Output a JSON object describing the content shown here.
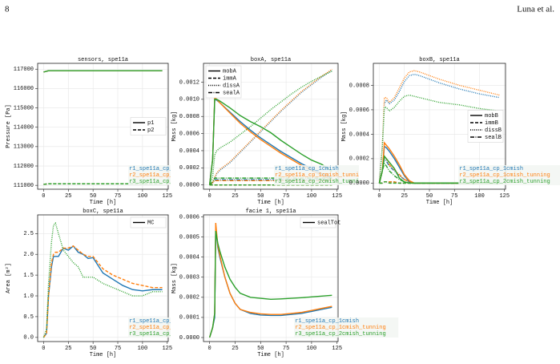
{
  "header": {
    "page": "8",
    "author": "Luna et al."
  },
  "chart_data": [
    {
      "type": "line",
      "title": "sensors, spe11a",
      "xlabel": "Time [h]",
      "ylabel": "Pressure [Pa]",
      "xlim": [
        -6,
        126
      ],
      "xticks": [
        0,
        25,
        50,
        75,
        100,
        125
      ],
      "ylim": [
        110800,
        117300
      ],
      "yticks": [
        111000,
        112000,
        113000,
        114000,
        115000,
        116000,
        117000
      ],
      "grid": true,
      "legend": "center right",
      "styles": [
        {
          "name": "p1",
          "dash": "solid"
        },
        {
          "name": "p2",
          "dash": "dashed"
        }
      ],
      "x": [
        0,
        5,
        120
      ],
      "runs": [
        {
          "name": "r1_spe11a_cp_1cmish",
          "color": "#1f77b4",
          "values": [
            [
              116850,
              116920,
              116920
            ],
            [
              111050,
              111080,
              111080
            ]
          ]
        },
        {
          "name": "r2_spe11a_cp_1cmish_tunning",
          "color": "#ff7f0e",
          "values": [
            [
              116850,
              116920,
              116920
            ],
            [
              111050,
              111080,
              111080
            ]
          ]
        },
        {
          "name": "r3_spe11a_cp_2cmish_tunning",
          "color": "#2ca02c",
          "values": [
            [
              116850,
              116920,
              116920
            ],
            [
              111050,
              111080,
              111080
            ]
          ]
        }
      ]
    },
    {
      "type": "line",
      "title": "boxA, spe11a",
      "xlabel": "Time [h]",
      "ylabel": "Mass [kg]",
      "xlim": [
        -6,
        126
      ],
      "xticks": [
        0,
        25,
        50,
        75,
        100,
        125
      ],
      "ylim": [
        -5e-05,
        0.00142
      ],
      "yticks": [
        {
          "value": 0,
          "label": "0.0000"
        },
        {
          "value": 0.0002,
          "label": "0.0002"
        },
        {
          "value": 0.0004,
          "label": "0.0004"
        },
        {
          "value": 0.0006,
          "label": "0.0006"
        },
        {
          "value": 0.0008,
          "label": "0.0008"
        },
        {
          "value": 0.001,
          "label": "0.0010"
        },
        {
          "value": 0.0012,
          "label": "0.0012"
        }
      ],
      "grid": true,
      "legend": "upper left",
      "styles": [
        {
          "name": "mobA",
          "dash": "solid"
        },
        {
          "name": "immA",
          "dash": "dashed"
        },
        {
          "name": "dissA",
          "dash": "dotted"
        },
        {
          "name": "sealA",
          "dash": "dashdot"
        }
      ],
      "x": [
        0,
        3,
        5,
        7,
        10,
        20,
        30,
        40,
        50,
        60,
        70,
        80,
        90,
        100,
        110,
        120
      ],
      "runs": [
        {
          "name": "r1_spe11a_cp_1cmish",
          "color": "#1f77b4",
          "values": [
            [
              0,
              0.0003,
              0.001,
              0.00099,
              0.00096,
              0.00085,
              0.00074,
              0.00064,
              0.00055,
              0.00047,
              0.00039,
              0.00032,
              0.00025,
              0.00019,
              0.00013,
              8e-05
            ],
            [
              0,
              0,
              0,
              0,
              0,
              0,
              0,
              0,
              0,
              0,
              0,
              0,
              0,
              0,
              0,
              0
            ],
            [
              0,
              2e-05,
              8e-05,
              0.00013,
              0.00017,
              0.00026,
              0.00038,
              0.0005,
              0.00062,
              0.00074,
              0.00086,
              0.00097,
              0.00108,
              0.00117,
              0.00126,
              0.00134
            ],
            [
              0,
              3e-05,
              6e-05,
              6e-05,
              6e-05,
              6e-05,
              6e-05,
              6e-05,
              6e-05,
              6e-05,
              6e-05,
              6e-05,
              6e-05,
              6e-05,
              6e-05,
              6e-05
            ]
          ]
        },
        {
          "name": "r2_spe11a_cp_1cmish_tunning",
          "color": "#ff7f0e",
          "values": [
            [
              0,
              0.0003,
              0.00102,
              0.001,
              0.00096,
              0.00084,
              0.00072,
              0.00062,
              0.00053,
              0.00045,
              0.00037,
              0.0003,
              0.00023,
              0.00017,
              0.00011,
              6e-05
            ],
            [
              0,
              0,
              0,
              0,
              0,
              0,
              0,
              0,
              0,
              0,
              0,
              0,
              0,
              0,
              0,
              0
            ],
            [
              0,
              3e-05,
              9e-05,
              0.00014,
              0.00018,
              0.00027,
              0.00039,
              0.00051,
              0.00063,
              0.00075,
              0.00087,
              0.00098,
              0.00109,
              0.00118,
              0.00127,
              0.00135
            ],
            [
              0,
              3e-05,
              5e-05,
              5e-05,
              5e-05,
              5e-05,
              5e-05,
              5e-05,
              5e-05,
              5e-05,
              5e-05,
              5e-05,
              5e-05,
              5e-05,
              5e-05,
              5e-05
            ]
          ]
        },
        {
          "name": "r3_spe11a_cp_2cmish_tunning",
          "color": "#2ca02c",
          "values": [
            [
              0,
              0.0003,
              0.001,
              0.001,
              0.00098,
              0.0009,
              0.00081,
              0.00074,
              0.00068,
              0.00061,
              0.00052,
              0.00044,
              0.00036,
              0.00029,
              0.00024,
              0.00016
            ],
            [
              0,
              0,
              0,
              0,
              0,
              0,
              0,
              0,
              0,
              0,
              0,
              0,
              0,
              0,
              0,
              0
            ],
            [
              0,
              0.0001,
              0.00035,
              0.0004,
              0.00043,
              0.0005,
              0.00059,
              0.00068,
              0.00078,
              0.00088,
              0.00097,
              0.00106,
              0.00114,
              0.00121,
              0.00127,
              0.00133
            ],
            [
              0,
              4e-05,
              8e-05,
              8e-05,
              8e-05,
              8e-05,
              8e-05,
              8e-05,
              8e-05,
              8e-05,
              8e-05,
              8e-05,
              8e-05,
              8e-05,
              8e-05,
              8e-05
            ]
          ]
        }
      ]
    },
    {
      "type": "line",
      "title": "boxB, spe11a",
      "xlabel": "Time [h]",
      "ylabel": "Mass [kg]",
      "xlim": [
        -6,
        126
      ],
      "xticks": [
        0,
        25,
        50,
        75,
        100,
        125
      ],
      "ylim": [
        -5e-05,
        0.00098
      ],
      "yticks": [
        {
          "value": 0,
          "label": "0.0000"
        },
        {
          "value": 0.0002,
          "label": "0.0002"
        },
        {
          "value": 0.0004,
          "label": "0.0004"
        },
        {
          "value": 0.0006,
          "label": "0.0006"
        },
        {
          "value": 0.0008,
          "label": "0.0008"
        }
      ],
      "grid": true,
      "legend": "center right",
      "styles": [
        {
          "name": "mobB",
          "dash": "solid"
        },
        {
          "name": "immB",
          "dash": "dashed"
        },
        {
          "name": "dissB",
          "dash": "dotted"
        },
        {
          "name": "sealB",
          "dash": "dashdot"
        }
      ],
      "x": [
        0,
        3,
        5,
        7,
        10,
        15,
        20,
        25,
        30,
        35,
        40,
        50,
        60,
        80,
        100,
        120
      ],
      "runs": [
        {
          "name": "r1_spe11a_cp_1cmish",
          "color": "#1f77b4",
          "values": [
            [
              0,
              0.0001,
              0.0003,
              0.00029,
              0.00026,
              0.0002,
              0.00013,
              6e-05,
              1e-05,
              0,
              0,
              0,
              0,
              0,
              0,
              0
            ],
            [
              0,
              0,
              1e-05,
              1e-05,
              1e-05,
              1e-05,
              0,
              0,
              0,
              0,
              0,
              0,
              0,
              0,
              0,
              0
            ],
            [
              0,
              0.0003,
              0.00065,
              0.00068,
              0.00065,
              0.00068,
              0.00075,
              0.00083,
              0.00088,
              0.00089,
              0.00088,
              0.00085,
              0.00082,
              0.00077,
              0.00073,
              0.0007
            ],
            [
              0,
              0.0001,
              0.0002,
              0.00018,
              0.00014,
              0.0001,
              6e-05,
              3e-05,
              1e-05,
              0,
              0,
              0,
              0,
              0,
              0,
              0
            ]
          ]
        },
        {
          "name": "r2_spe11a_cp_1cmish_tunning",
          "color": "#ff7f0e",
          "values": [
            [
              0,
              0.0001,
              0.00033,
              0.00031,
              0.00028,
              0.00022,
              0.00015,
              7e-05,
              2e-05,
              0,
              0,
              0,
              0,
              0,
              0,
              0
            ],
            [
              0,
              0,
              1e-05,
              1e-05,
              1e-05,
              1e-05,
              0,
              0,
              0,
              0,
              0,
              0,
              0,
              0,
              0,
              0
            ],
            [
              0,
              0.0003,
              0.0007,
              0.0007,
              0.00066,
              0.0007,
              0.00078,
              0.00086,
              0.00091,
              0.00092,
              0.00091,
              0.00088,
              0.00085,
              0.0008,
              0.00076,
              0.00072
            ],
            [
              0,
              0.0001,
              0.00022,
              0.0002,
              0.00015,
              0.00011,
              7e-05,
              3e-05,
              1e-05,
              0,
              0,
              0,
              0,
              0,
              0,
              0
            ]
          ]
        },
        {
          "name": "r3_spe11a_cp_2cmish_tunning",
          "color": "#2ca02c",
          "values": [
            [
              0,
              0.0001,
              0.00022,
              0.0002,
              0.00017,
              0.00012,
              4e-05,
              1e-05,
              0,
              0,
              0,
              0,
              0,
              0,
              0,
              0
            ],
            [
              0,
              0,
              1e-05,
              1e-05,
              0,
              0,
              0,
              0,
              0,
              0,
              0,
              0,
              0,
              0,
              0,
              0
            ],
            [
              0,
              0.0003,
              0.00062,
              0.00062,
              0.00059,
              0.00062,
              0.00067,
              0.00071,
              0.00072,
              0.00071,
              0.0007,
              0.00068,
              0.00066,
              0.00064,
              0.00061,
              0.00059
            ],
            [
              0,
              0.0001,
              0.00016,
              0.00014,
              0.0001,
              6e-05,
              3e-05,
              1e-05,
              0,
              0,
              0,
              0,
              0,
              0,
              0,
              0
            ]
          ]
        }
      ]
    },
    {
      "type": "line",
      "title": "boxC, spe11a",
      "xlabel": "Time [h]",
      "ylabel": "Area [m²]",
      "xlim": [
        -6,
        126
      ],
      "xticks": [
        0,
        25,
        50,
        75,
        100,
        125
      ],
      "ylim": [
        -0.1,
        2.95
      ],
      "yticks": [
        {
          "value": 0,
          "label": "0.0"
        },
        0.5,
        {
          "value": 1,
          "label": "1.0"
        },
        1.5,
        {
          "value": 2,
          "label": "2.0"
        },
        2.5
      ],
      "grid": true,
      "legend": "upper right",
      "styles": [
        {
          "name": "MC",
          "dash": "solid"
        }
      ],
      "x": [
        0,
        3,
        5,
        8,
        10,
        12,
        15,
        20,
        25,
        30,
        35,
        40,
        45,
        50,
        60,
        70,
        80,
        90,
        100,
        110,
        120
      ],
      "runs": [
        {
          "name": "r1_spe11a_cp_1cmish",
          "color": "#1f77b4",
          "dash": "solid",
          "values": [
            [
              0,
              0.1,
              1.0,
              1.7,
              1.95,
              1.95,
              1.95,
              2.15,
              2.1,
              2.2,
              2.05,
              2.0,
              1.9,
              1.92,
              1.55,
              1.4,
              1.25,
              1.15,
              1.12,
              1.15,
              1.15
            ]
          ]
        },
        {
          "name": "r2_spe11a_cp_1cmish_tunning",
          "color": "#ff7f0e",
          "dash": "dashed",
          "values": [
            [
              0,
              0.1,
              1.0,
              1.8,
              2.0,
              2.05,
              2.05,
              2.15,
              2.15,
              2.2,
              2.1,
              2.0,
              1.95,
              1.95,
              1.65,
              1.5,
              1.4,
              1.3,
              1.25,
              1.2,
              1.2
            ]
          ]
        },
        {
          "name": "r3_spe11a_cp_2cmish_tunning",
          "color": "#2ca02c",
          "dash": "dotted",
          "values": [
            [
              0,
              0.2,
              1.3,
              2.3,
              2.7,
              2.75,
              2.5,
              2.1,
              1.95,
              1.8,
              1.7,
              1.45,
              1.45,
              1.45,
              1.3,
              1.2,
              1.1,
              1.0,
              1.0,
              1.1,
              1.1
            ]
          ]
        }
      ]
    },
    {
      "type": "line",
      "title": "facie 1, spe11a",
      "xlabel": "Time [h]",
      "ylabel": "Mass [kg]",
      "xlim": [
        -6,
        126
      ],
      "xticks": [
        0,
        25,
        50,
        75,
        100,
        125
      ],
      "ylim": [
        -2e-05,
        0.00061
      ],
      "yticks": [
        {
          "value": 0,
          "label": "0.0000"
        },
        {
          "value": 0.0001,
          "label": "0.0001"
        },
        {
          "value": 0.0002,
          "label": "0.0002"
        },
        {
          "value": 0.0003,
          "label": "0.0003"
        },
        {
          "value": 0.0004,
          "label": "0.0004"
        },
        {
          "value": 0.0005,
          "label": "0.0005"
        },
        {
          "value": 0.0006,
          "label": "0.0006"
        }
      ],
      "grid": true,
      "legend": "upper right",
      "styles": [
        {
          "name": "sealTot",
          "dash": "solid"
        }
      ],
      "x": [
        0,
        3,
        5,
        6,
        8,
        10,
        15,
        20,
        25,
        30,
        40,
        50,
        60,
        70,
        80,
        90,
        100,
        110,
        120
      ],
      "runs": [
        {
          "name": "r1_spe11a_cp_1cmish",
          "color": "#1f77b4",
          "values": [
            [
              0,
              5e-05,
              0.0001,
              0.00055,
              0.00045,
              0.0004,
              0.0003,
              0.00022,
              0.00017,
              0.00014,
              0.00012,
              0.000112,
              0.00011,
              0.00011,
              0.000115,
              0.00012,
              0.00013,
              0.00014,
              0.00015
            ]
          ]
        },
        {
          "name": "r2_spe11a_cp_1cmish_tunning",
          "color": "#ff7f0e",
          "values": [
            [
              0,
              5e-05,
              0.00012,
              0.00057,
              0.00046,
              0.00041,
              0.0003,
              0.00022,
              0.00017,
              0.00014,
              0.000125,
              0.000118,
              0.000115,
              0.000115,
              0.00012,
              0.000125,
              0.000135,
              0.000145,
              0.000155
            ]
          ]
        },
        {
          "name": "r3_spe11a_cp_2cmish_tunning",
          "color": "#2ca02c",
          "values": [
            [
              0,
              5e-05,
              0.00012,
              0.00053,
              0.00047,
              0.00043,
              0.00035,
              0.00029,
              0.00025,
              0.00022,
              0.0002,
              0.000195,
              0.00019,
              0.000192,
              0.000195,
              0.000198,
              0.000202,
              0.000206,
              0.00021
            ]
          ]
        }
      ]
    }
  ]
}
